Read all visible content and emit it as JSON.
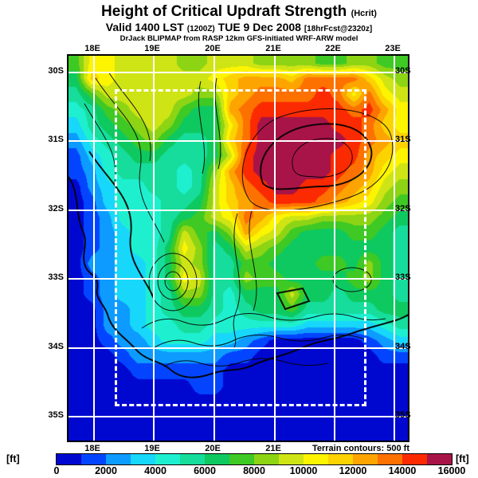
{
  "header": {
    "title": "Height of Critical Updraft Strength",
    "title_unit": "(Hcrit)",
    "valid_bold_1": "Valid 1400 LST",
    "valid_small_1": "(1200Z)",
    "valid_bold_2": "TUE 9 Dec 2008",
    "valid_small_2": "[18hrFcst@2320z]",
    "model_line": "DrJack BLIPMAP from RASP 12km GFS-initiated WRF-ARW model"
  },
  "map": {
    "top_axis_labels": [
      "18E",
      "19E",
      "20E",
      "21E",
      "22E",
      "23E"
    ],
    "bottom_axis_labels": [
      "18E",
      "19E",
      "20E",
      "21E"
    ],
    "left_axis_labels": [
      "30S",
      "31S",
      "32S",
      "33S",
      "34S",
      "35S"
    ],
    "right_axis_labels": [
      "30S",
      "31S",
      "32S",
      "33S",
      "34S",
      "35S"
    ],
    "terrain_note": "Terrain contours: 500 ft"
  },
  "colorbar": {
    "unit_left": "[ft]",
    "unit_right": "[ft]",
    "tick_labels": [
      "0",
      "2000",
      "4000",
      "6000",
      "8000",
      "10000",
      "12000",
      "14000",
      "16000"
    ],
    "colors": [
      "#0008d0",
      "#0345ff",
      "#0d9bff",
      "#17d7fb",
      "#1ef0cf",
      "#16dd9b",
      "#0ec95f",
      "#3ec924",
      "#8cd414",
      "#cfe414",
      "#fdf500",
      "#fcd200",
      "#fda400",
      "#fd7100",
      "#fb2a00",
      "#a81448"
    ]
  },
  "chart_data": {
    "type": "heatmap",
    "title": "Height of Critical Updraft Strength (Hcrit)",
    "subtitle": "Valid 1400 LST (1200Z) TUE 9 Dec 2008 [18hrFcst@2320z]",
    "source": "DrJack BLIPMAP from RASP 12km GFS-initiated WRF-ARW model",
    "units": "ft",
    "lon_range": [
      17.6,
      23.3
    ],
    "lat_range": [
      -35.4,
      -29.8
    ],
    "level_min": 0,
    "level_max": 16000,
    "level_step": 1000,
    "terrain_contour_interval_ft": 500,
    "palette": [
      "#0008d0",
      "#0345ff",
      "#0d9bff",
      "#17d7fb",
      "#1ef0cf",
      "#16dd9b",
      "#0ec95f",
      "#3ec924",
      "#8cd414",
      "#cfe414",
      "#fdf500",
      "#fcd200",
      "#fda400",
      "#fd7100",
      "#fb2a00",
      "#a81448"
    ],
    "grid": {
      "cols": 22,
      "rows": 25,
      "note": "Hcrit values in ft; 500 = ocean/minimum band",
      "values_ft": [
        [
          7500,
          10500,
          10500,
          9500,
          9500,
          9500,
          9500,
          8500,
          8500,
          9500,
          9500,
          9500,
          8500,
          8500,
          8500,
          8500,
          7500,
          7500,
          8500,
          8500,
          7500,
          7500
        ],
        [
          6500,
          11500,
          10500,
          9500,
          9500,
          9500,
          9500,
          9500,
          9500,
          10500,
          11500,
          12500,
          12500,
          12500,
          11500,
          13500,
          13500,
          13500,
          13500,
          11500,
          9500,
          8500
        ],
        [
          5500,
          7500,
          9500,
          9500,
          9500,
          9500,
          9500,
          9500,
          8500,
          8500,
          11500,
          12500,
          13500,
          13500,
          13500,
          13500,
          14500,
          13500,
          10500,
          13500,
          10500,
          9500
        ],
        [
          4500,
          5500,
          7500,
          8500,
          9500,
          9500,
          9500,
          7500,
          6500,
          6500,
          12500,
          13500,
          14500,
          14500,
          14500,
          14500,
          14500,
          14500,
          13500,
          14500,
          12500,
          10500
        ],
        [
          3500,
          5500,
          6500,
          7500,
          8500,
          9500,
          8500,
          6500,
          6500,
          6500,
          10500,
          13500,
          15500,
          15500,
          15500,
          15500,
          15500,
          14500,
          14500,
          13500,
          11500,
          10500
        ],
        [
          2500,
          4500,
          5500,
          6500,
          7500,
          8500,
          6500,
          5500,
          5500,
          6500,
          11500,
          13500,
          15500,
          15500,
          15500,
          15500,
          15500,
          15500,
          14500,
          13500,
          12500,
          11500
        ],
        [
          1500,
          3500,
          4500,
          5500,
          6500,
          6500,
          5500,
          5500,
          5500,
          6500,
          9500,
          14500,
          15500,
          15500,
          15500,
          15500,
          15500,
          14500,
          14500,
          12500,
          11500,
          10500
        ],
        [
          1500,
          2500,
          4500,
          5500,
          5500,
          5500,
          5500,
          4500,
          5500,
          8500,
          12500,
          14500,
          15500,
          15500,
          15500,
          15500,
          15500,
          14500,
          13500,
          12500,
          10500,
          9500
        ],
        [
          500,
          2500,
          3500,
          4500,
          4500,
          5500,
          5500,
          4500,
          5500,
          9500,
          11500,
          13500,
          14500,
          15500,
          15500,
          14500,
          14500,
          13500,
          12500,
          11500,
          9500,
          8500
        ],
        [
          500,
          1500,
          3500,
          4500,
          4500,
          4500,
          5500,
          5500,
          6500,
          9500,
          11500,
          12500,
          13500,
          14500,
          14500,
          14500,
          13500,
          12500,
          11500,
          10500,
          8500,
          7500
        ],
        [
          500,
          1500,
          2500,
          4500,
          4500,
          4500,
          5500,
          6500,
          7500,
          9500,
          10500,
          13500,
          12500,
          10500,
          9500,
          9500,
          8500,
          8500,
          8500,
          8500,
          7500,
          6500
        ],
        [
          500,
          1500,
          2500,
          3500,
          4500,
          4500,
          5500,
          9500,
          7500,
          6500,
          8500,
          12500,
          10500,
          9500,
          7500,
          6500,
          6500,
          6500,
          7500,
          7500,
          6500,
          5500
        ],
        [
          500,
          1500,
          2500,
          3500,
          4500,
          4500,
          6500,
          10500,
          8500,
          5500,
          6500,
          9500,
          8500,
          7500,
          6500,
          6500,
          6500,
          6500,
          6500,
          6500,
          6500,
          5500
        ],
        [
          500,
          2500,
          2500,
          3500,
          3500,
          4500,
          6500,
          9500,
          8500,
          5500,
          5500,
          7500,
          7500,
          6500,
          6500,
          6500,
          7500,
          7500,
          6500,
          8500,
          6500,
          5500
        ],
        [
          500,
          1500,
          2500,
          3500,
          3500,
          4500,
          6500,
          10500,
          9500,
          5500,
          5500,
          8500,
          7500,
          7500,
          6500,
          6500,
          6500,
          6500,
          7500,
          8500,
          6500,
          5500
        ],
        [
          500,
          1500,
          2500,
          3500,
          3500,
          4500,
          5500,
          8500,
          8500,
          5500,
          4500,
          6500,
          6500,
          6500,
          9500,
          6500,
          6500,
          5500,
          6500,
          6500,
          6500,
          5500
        ],
        [
          500,
          500,
          2500,
          2500,
          3500,
          4500,
          5500,
          6500,
          6500,
          5500,
          4500,
          5500,
          6500,
          6500,
          7500,
          5500,
          5500,
          5500,
          5500,
          5500,
          6500,
          6500
        ],
        [
          500,
          500,
          2500,
          2500,
          3500,
          4500,
          4500,
          5500,
          5500,
          4500,
          4500,
          4500,
          4500,
          4500,
          4500,
          3500,
          3500,
          3500,
          3500,
          3500,
          4500,
          5500
        ],
        [
          500,
          500,
          1500,
          2500,
          2500,
          3500,
          4500,
          4500,
          4500,
          3500,
          3500,
          2500,
          1500,
          500,
          500,
          500,
          500,
          500,
          500,
          1500,
          2500,
          3500
        ],
        [
          500,
          500,
          500,
          1500,
          2500,
          2500,
          2500,
          2500,
          2500,
          2500,
          1500,
          1500,
          500,
          500,
          500,
          500,
          500,
          500,
          500,
          500,
          1500,
          1500
        ],
        [
          500,
          500,
          500,
          500,
          1500,
          1500,
          1500,
          1500,
          1500,
          1500,
          500,
          500,
          500,
          500,
          500,
          500,
          500,
          500,
          500,
          500,
          500,
          500
        ],
        [
          500,
          500,
          500,
          500,
          500,
          500,
          500,
          500,
          1500,
          1500,
          500,
          500,
          500,
          500,
          500,
          500,
          500,
          500,
          500,
          500,
          500,
          500
        ],
        [
          500,
          500,
          500,
          500,
          500,
          500,
          500,
          500,
          500,
          500,
          500,
          500,
          500,
          500,
          500,
          500,
          500,
          500,
          500,
          500,
          500,
          500
        ],
        [
          500,
          500,
          500,
          500,
          500,
          500,
          500,
          500,
          500,
          500,
          500,
          500,
          500,
          500,
          500,
          500,
          500,
          500,
          500,
          500,
          500,
          500
        ],
        [
          500,
          500,
          500,
          500,
          500,
          500,
          500,
          500,
          500,
          500,
          500,
          500,
          500,
          500,
          500,
          500,
          500,
          500,
          500,
          500,
          500,
          500
        ]
      ]
    }
  }
}
